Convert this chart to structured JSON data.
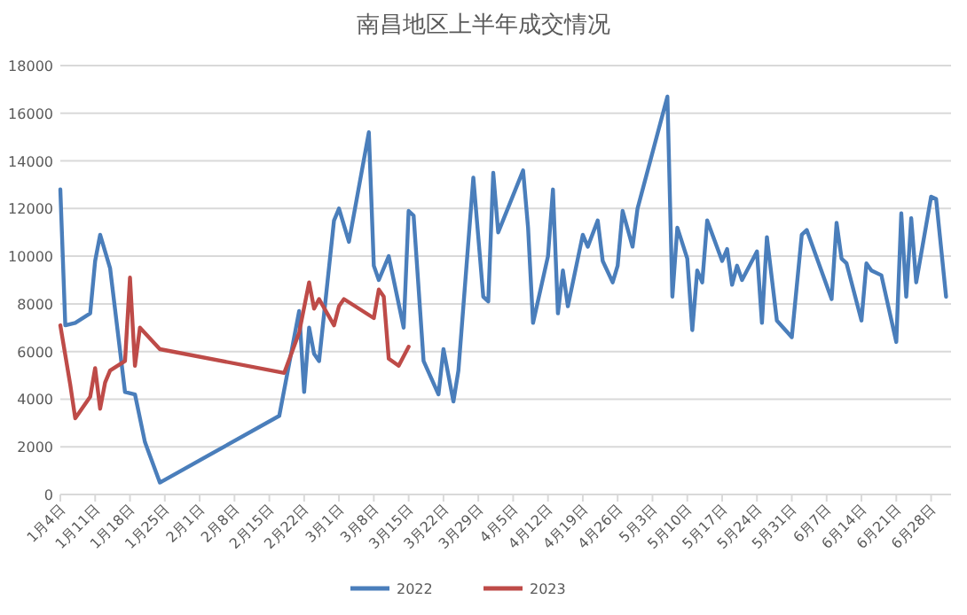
{
  "chart_data": {
    "type": "line",
    "title": "南昌地区上半年成交情况",
    "xlim": [
      "--01-04",
      "--07-02"
    ],
    "xticks": [
      {
        "value": "--01-04",
        "label": "1月4日"
      },
      {
        "value": "--01-11",
        "label": "1月11日"
      },
      {
        "value": "--01-18",
        "label": "1月18日"
      },
      {
        "value": "--01-25",
        "label": "1月25日"
      },
      {
        "value": "--02-01",
        "label": "2月1日"
      },
      {
        "value": "--02-08",
        "label": "2月8日"
      },
      {
        "value": "--02-15",
        "label": "2月15日"
      },
      {
        "value": "--02-22",
        "label": "2月22日"
      },
      {
        "value": "--03-01",
        "label": "3月1日"
      },
      {
        "value": "--03-08",
        "label": "3月8日"
      },
      {
        "value": "--03-15",
        "label": "3月15日"
      },
      {
        "value": "--03-22",
        "label": "3月22日"
      },
      {
        "value": "--03-29",
        "label": "3月29日"
      },
      {
        "value": "--04-05",
        "label": "4月5日"
      },
      {
        "value": "--04-12",
        "label": "4月12日"
      },
      {
        "value": "--04-19",
        "label": "4月19日"
      },
      {
        "value": "--04-26",
        "label": "4月26日"
      },
      {
        "value": "--05-03",
        "label": "5月3日"
      },
      {
        "value": "--05-10",
        "label": "5月10日"
      },
      {
        "value": "--05-17",
        "label": "5月17日"
      },
      {
        "value": "--05-24",
        "label": "5月24日"
      },
      {
        "value": "--05-31",
        "label": "5月31日"
      },
      {
        "value": "--06-07",
        "label": "6月7日"
      },
      {
        "value": "--06-14",
        "label": "6月14日"
      },
      {
        "value": "--06-21",
        "label": "6月21日"
      },
      {
        "value": "--06-28",
        "label": "6月28日"
      }
    ],
    "ylim": [
      0,
      18000
    ],
    "yticks": [
      0,
      2000,
      4000,
      6000,
      8000,
      10000,
      12000,
      14000,
      16000,
      18000
    ],
    "grid": "y",
    "legend": "bottom",
    "marker": "none",
    "line_style": "solid",
    "series": [
      {
        "name": "2022",
        "color": "#4a7ebb",
        "x": [
          "--01-04",
          "--01-05",
          "--01-07",
          "--01-10",
          "--01-11",
          "--01-12",
          "--01-14",
          "--01-17",
          "--01-19",
          "--01-21",
          "--01-24",
          "--02-17",
          "--02-21",
          "--02-22",
          "--02-23",
          "--02-24",
          "--02-25",
          "--02-28",
          "--03-01",
          "--03-03",
          "--03-07",
          "--03-08",
          "--03-09",
          "--03-11",
          "--03-14",
          "--03-15",
          "--03-16",
          "--03-18",
          "--03-21",
          "--03-22",
          "--03-24",
          "--03-25",
          "--03-28",
          "--03-30",
          "--03-31",
          "--04-01",
          "--04-02",
          "--04-07",
          "--04-08",
          "--04-09",
          "--04-12",
          "--04-13",
          "--04-14",
          "--04-15",
          "--04-16",
          "--04-19",
          "--04-20",
          "--04-22",
          "--04-23",
          "--04-25",
          "--04-26",
          "--04-27",
          "--04-29",
          "--04-30",
          "--05-06",
          "--05-07",
          "--05-08",
          "--05-10",
          "--05-11",
          "--05-12",
          "--05-13",
          "--05-14",
          "--05-17",
          "--05-18",
          "--05-19",
          "--05-20",
          "--05-21",
          "--05-24",
          "--05-25",
          "--05-26",
          "--05-28",
          "--05-31",
          "--06-02",
          "--06-03",
          "--06-08",
          "--06-09",
          "--06-10",
          "--06-11",
          "--06-14",
          "--06-15",
          "--06-16",
          "--06-18",
          "--06-21",
          "--06-22",
          "--06-23",
          "--06-24",
          "--06-25",
          "--06-28",
          "--06-29",
          "--07-01"
        ],
        "values": [
          12800,
          7100,
          7200,
          7600,
          9800,
          10900,
          9500,
          4300,
          4200,
          2200,
          500,
          3300,
          7700,
          4300,
          7000,
          5900,
          5600,
          11500,
          12000,
          10600,
          15200,
          9600,
          9000,
          10000,
          7000,
          11900,
          11700,
          5600,
          4200,
          6100,
          3900,
          5200,
          13300,
          8300,
          8100,
          13500,
          11000,
          13600,
          11200,
          7200,
          10000,
          12800,
          7600,
          9400,
          7900,
          10900,
          10400,
          11500,
          9800,
          8900,
          9600,
          11900,
          10400,
          12000,
          16700,
          8300,
          11200,
          9900,
          6900,
          9400,
          8900,
          11500,
          9800,
          10300,
          8800,
          9600,
          9000,
          10200,
          7200,
          10800,
          7300,
          6600,
          10900,
          11100,
          8200,
          11400,
          9900,
          9700,
          7300,
          9700,
          9400,
          9200,
          6400,
          11800,
          8300,
          11600,
          8900,
          12500,
          12400,
          8300
        ]
      },
      {
        "name": "2023",
        "color": "#be4b48",
        "x": [
          "--01-04",
          "--01-06",
          "--01-07",
          "--01-10",
          "--01-11",
          "--01-12",
          "--01-13",
          "--01-14",
          "--01-17",
          "--01-18",
          "--01-19",
          "--01-20",
          "--01-24",
          "--02-18",
          "--02-21",
          "--02-23",
          "--02-24",
          "--02-25",
          "--02-28",
          "--03-01",
          "--03-02",
          "--03-08",
          "--03-09",
          "--03-10",
          "--03-11",
          "--03-13",
          "--03-15"
        ],
        "values": [
          7100,
          4600,
          3200,
          4100,
          5300,
          3600,
          4700,
          5200,
          5600,
          9100,
          5400,
          7000,
          6100,
          5100,
          6800,
          8900,
          7800,
          8200,
          7100,
          7900,
          8200,
          7400,
          8600,
          8300,
          5700,
          5400,
          6200
        ]
      }
    ]
  }
}
